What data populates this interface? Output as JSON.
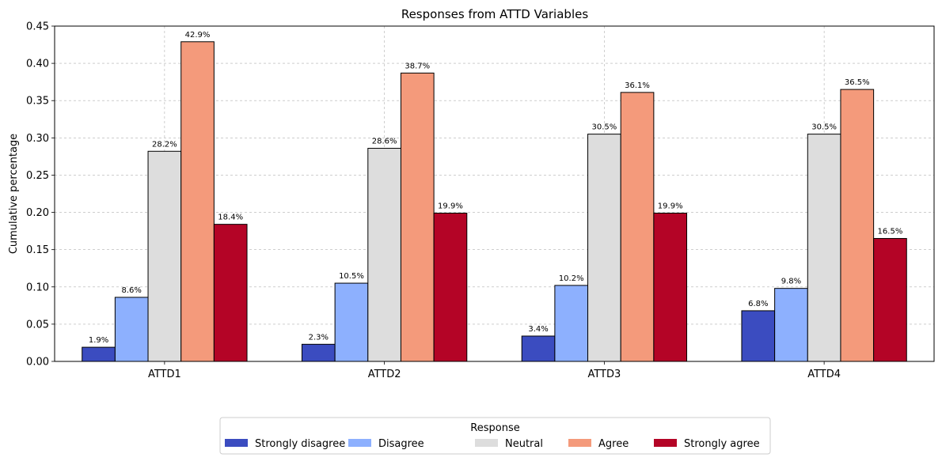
{
  "chart_data": {
    "type": "bar",
    "title": "Responses from ATTD Variables",
    "xlabel": "",
    "ylabel": "Cumulative percentage",
    "categories": [
      "ATTD1",
      "ATTD2",
      "ATTD3",
      "ATTD4"
    ],
    "ylim": [
      0,
      0.45
    ],
    "yticks": [
      "0.00",
      "0.05",
      "0.10",
      "0.15",
      "0.20",
      "0.25",
      "0.30",
      "0.35",
      "0.40",
      "0.45"
    ],
    "grid": true,
    "legend_title": "Response",
    "legend_position": "bottom-center",
    "series": [
      {
        "name": "Strongly disagree",
        "color": "#3b4cc0",
        "values": [
          0.019,
          0.023,
          0.034,
          0.068
        ],
        "labels": [
          "1.9%",
          "2.3%",
          "3.4%",
          "6.8%"
        ]
      },
      {
        "name": "Disagree",
        "color": "#8db0fe",
        "values": [
          0.086,
          0.105,
          0.102,
          0.098
        ],
        "labels": [
          "8.6%",
          "10.5%",
          "10.2%",
          "9.8%"
        ]
      },
      {
        "name": "Neutral",
        "color": "#dddddd",
        "values": [
          0.282,
          0.286,
          0.305,
          0.305
        ],
        "labels": [
          "28.2%",
          "28.6%",
          "30.5%",
          "30.5%"
        ]
      },
      {
        "name": "Agree",
        "color": "#f49a7b",
        "values": [
          0.429,
          0.387,
          0.361,
          0.365
        ],
        "labels": [
          "42.9%",
          "38.7%",
          "36.1%",
          "36.5%"
        ]
      },
      {
        "name": "Strongly agree",
        "color": "#b40426",
        "values": [
          0.184,
          0.199,
          0.199,
          0.165
        ],
        "labels": [
          "18.4%",
          "19.9%",
          "19.9%",
          "16.5%"
        ]
      }
    ]
  }
}
